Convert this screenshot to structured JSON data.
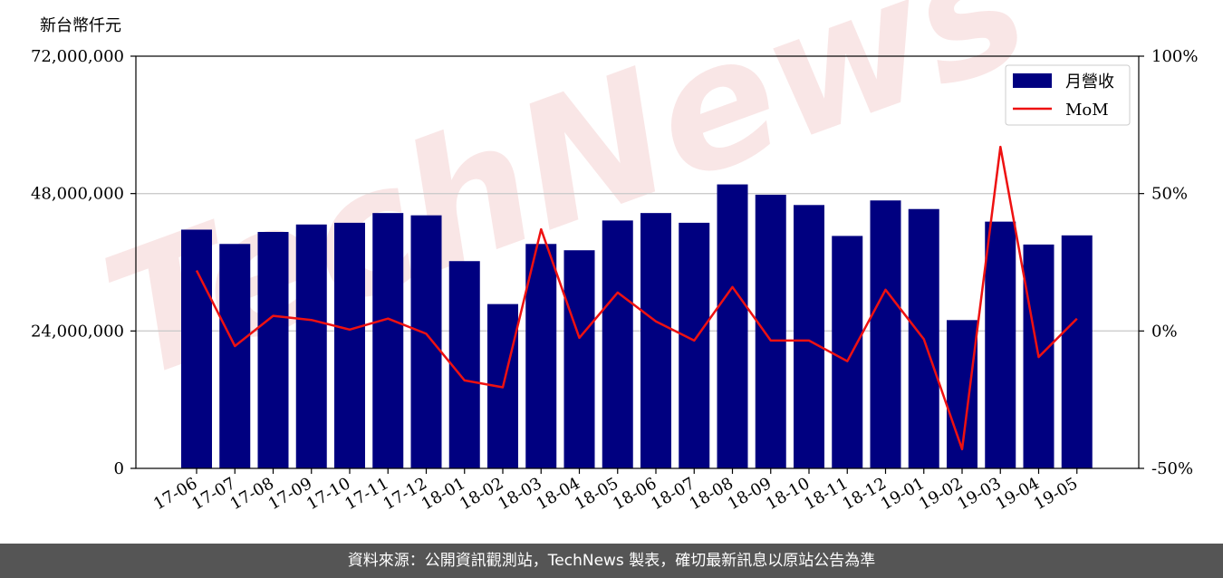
{
  "unit_label": "新台幣仟元",
  "footer_text": "資料來源：公開資訊觀測站，TechNews 製表，確切最新訊息以原站公告為準",
  "watermark_text": "TechNews",
  "colors": {
    "bar": "#000080",
    "line": "#ee1111",
    "grid": "#cccccc",
    "footer_bg": "#555555",
    "watermark": "#f3c9c9"
  },
  "chart_data": {
    "type": "bar",
    "categories": [
      "17-06",
      "17-07",
      "17-08",
      "17-09",
      "17-10",
      "17-11",
      "17-12",
      "18-01",
      "18-02",
      "18-03",
      "18-04",
      "18-05",
      "18-06",
      "18-07",
      "18-08",
      "18-09",
      "18-10",
      "18-11",
      "18-12",
      "19-01",
      "19-02",
      "19-03",
      "19-04",
      "19-05"
    ],
    "series": [
      {
        "name": "月營收",
        "type": "bar",
        "axis": "left",
        "values": [
          41700000,
          39200000,
          41300000,
          42600000,
          42900000,
          44600000,
          44200000,
          36200000,
          28700000,
          39200000,
          38100000,
          43300000,
          44600000,
          42900000,
          49600000,
          47800000,
          46000000,
          40600000,
          46800000,
          45300000,
          25900000,
          43100000,
          39100000,
          40700000
        ]
      },
      {
        "name": "MoM",
        "type": "line",
        "axis": "right",
        "values": [
          22,
          -5.5,
          5.5,
          4,
          0.5,
          4.5,
          -1,
          -18,
          -20.5,
          37,
          -2.5,
          14,
          3.5,
          -3.5,
          16,
          -3.5,
          -3.5,
          -11,
          15,
          -3,
          -43,
          67,
          -9.5,
          4.5
        ]
      }
    ],
    "y_left": {
      "ylim": [
        0,
        72000000
      ],
      "ticks": [
        0,
        24000000,
        48000000,
        72000000
      ],
      "tick_labels": [
        "0",
        "24,000,000",
        "48,000,000",
        "72,000,000"
      ]
    },
    "y_right": {
      "ylim": [
        -50,
        100
      ],
      "ticks": [
        -50,
        0,
        50,
        100
      ],
      "tick_labels": [
        "-50%",
        "0%",
        "50%",
        "100%"
      ]
    },
    "grid": "horizontal",
    "legend": {
      "position": "top-right",
      "entries": [
        "月營收",
        "MoM"
      ]
    }
  }
}
